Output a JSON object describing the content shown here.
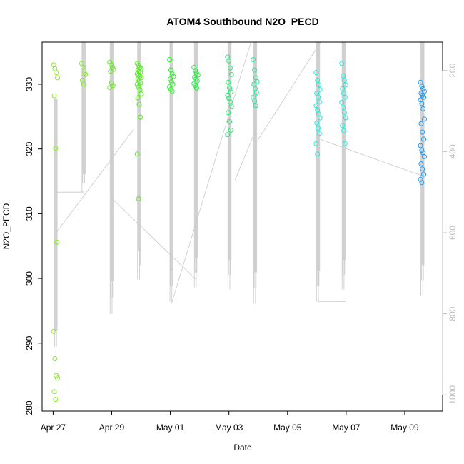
{
  "chart_data": {
    "type": "scatter",
    "title": "ATOM4 Southbound N2O_PECD",
    "xlabel": "Date",
    "ylabel": "N2O_PECD",
    "xlim": [
      "2018-04-26T15:00",
      "2018-05-10T07:00"
    ],
    "ylim": [
      279.5,
      336.5
    ],
    "xticks": [
      {
        "date": "2018-04-27",
        "label": "Apr 27"
      },
      {
        "date": "2018-04-29",
        "label": "Apr 29"
      },
      {
        "date": "2018-05-01",
        "label": "May 01"
      },
      {
        "date": "2018-05-03",
        "label": "May 03"
      },
      {
        "date": "2018-05-05",
        "label": "May 05"
      },
      {
        "date": "2018-05-07",
        "label": "May 07"
      },
      {
        "date": "2018-05-09",
        "label": "May 09"
      }
    ],
    "yticks": [
      280,
      290,
      300,
      310,
      320,
      330
    ],
    "right_axis": {
      "range": [
        1040,
        130
      ],
      "ticks": [
        200,
        400,
        600,
        800,
        1000
      ],
      "color": "#bdbdbd"
    },
    "grid": false,
    "legend": "none",
    "marker": "open-circle",
    "line_color": "#c8c8c8",
    "point_groups": [
      {
        "time": "2018-04-27T02:00",
        "color": "#88ee22",
        "values": [
          333,
          332.4,
          331.8,
          331,
          328.2,
          320.1,
          305.6,
          291.8,
          287.6,
          285,
          284.6,
          282.5,
          281.3
        ]
      },
      {
        "time": "2018-04-28T01:00",
        "color": "#80ee22",
        "values": [
          333.2,
          332.6,
          331.7,
          331.5,
          330.6,
          330
        ]
      },
      {
        "time": "2018-04-29T00:00",
        "color": "#66ee22",
        "values": [
          333.4,
          333,
          332.6,
          332.3,
          332,
          330.2,
          329.8,
          329.5
        ]
      },
      {
        "time": "2018-04-29T22:30",
        "color": "#55ee22",
        "values": [
          333.2,
          332.9,
          332.6,
          332.4,
          332.2,
          332,
          331.8,
          331.6,
          331.4,
          331.2,
          331,
          330.8,
          330.5,
          330.2,
          330,
          329.6,
          329.2,
          328.5,
          327.9,
          326.9,
          324.9,
          319.2,
          312.3
        ]
      },
      {
        "time": "2018-05-01T01:00",
        "color": "#33ee33",
        "values": [
          333.8,
          332.2,
          331.6,
          331.2,
          330.8,
          330.4,
          330,
          329.6,
          329.2,
          328.9
        ]
      },
      {
        "time": "2018-05-01T21:00",
        "color": "#22ee44",
        "values": [
          332.6,
          332.1,
          331.7,
          331.4,
          331.1,
          330.8,
          330.5,
          330.1,
          329.8,
          329.4
        ]
      },
      {
        "time": "2018-05-03T00:30",
        "color": "#22ee77",
        "values": [
          334.2,
          333.6,
          332.5,
          331.5,
          330.3,
          329.4,
          328.8,
          328.3,
          327.8,
          327.3,
          326.6,
          325.6,
          324.2,
          322.9,
          322.2
        ]
      },
      {
        "time": "2018-05-03T21:30",
        "color": "#22ee99",
        "values": [
          333.8,
          332.2,
          331,
          330.4,
          330,
          329.3,
          328.7,
          328,
          327.4,
          326.7
        ]
      },
      {
        "time": "2018-05-06T01:00",
        "color": "#22eedd",
        "values": [
          331.8,
          330.6,
          329.9,
          329.2,
          328.6,
          328,
          327.3,
          326.7,
          326,
          325.4,
          324.8,
          324,
          323.2,
          322.4,
          320.8,
          319.2
        ]
      },
      {
        "time": "2018-05-06T22:00",
        "color": "#22eedd",
        "values": [
          333.2,
          331.3,
          330.6,
          329.9,
          329.3,
          328.6,
          328,
          327.2,
          326.4,
          325.6,
          324.8,
          323.6,
          322.8,
          320.8
        ]
      },
      {
        "time": "2018-05-09T14:30",
        "color": "#2299ee",
        "values": [
          330.3,
          329.7,
          329.3,
          328.9,
          328.6,
          328.3,
          328,
          327.6,
          327,
          326.2,
          324.6,
          323.9,
          322.6,
          321.5,
          320.5,
          319.8,
          319.4,
          318.8,
          317.7,
          316.9,
          316.1,
          315.3,
          314.8
        ]
      }
    ],
    "altitude_profiles": [
      {
        "time": "2018-04-27T02:00",
        "min_ft": 270,
        "max_ft": 920
      },
      {
        "time": "2018-04-28T01:00",
        "min_ft": 130,
        "max_ft": 500
      },
      {
        "time": "2018-04-29T00:00",
        "min_ft": 130,
        "max_ft": 800
      },
      {
        "time": "2018-04-29T22:30",
        "min_ft": 130,
        "max_ft": 715
      },
      {
        "time": "2018-05-01T01:00",
        "min_ft": 130,
        "max_ft": 770
      },
      {
        "time": "2018-05-01T21:00",
        "min_ft": 130,
        "max_ft": 735
      },
      {
        "time": "2018-05-03T00:30",
        "min_ft": 130,
        "max_ft": 740
      },
      {
        "time": "2018-05-03T21:30",
        "min_ft": 130,
        "max_ft": 775
      },
      {
        "time": "2018-05-06T01:00",
        "min_ft": 130,
        "max_ft": 770
      },
      {
        "time": "2018-05-06T22:00",
        "min_ft": 130,
        "max_ft": 740
      },
      {
        "time": "2018-05-09T14:30",
        "min_ft": 130,
        "max_ft": 755
      }
    ],
    "transit_lines": [
      [
        {
          "time": "2018-04-27T00:30",
          "ft": 500
        },
        {
          "time": "2018-04-28T01:00",
          "ft": 500
        }
      ],
      [
        {
          "time": "2018-04-27T02:30",
          "ft": 600
        },
        {
          "time": "2018-04-29T18:00",
          "ft": 345
        }
      ],
      [
        {
          "time": "2018-04-29T00:00",
          "ft": 515
        },
        {
          "time": "2018-05-01T21:00",
          "ft": 715
        }
      ],
      [
        {
          "time": "2018-05-01T01:00",
          "ft": 775
        },
        {
          "time": "2018-05-03T18:00",
          "ft": 130
        }
      ],
      [
        {
          "time": "2018-05-03T05:00",
          "ft": 470
        },
        {
          "time": "2018-05-03T21:30",
          "ft": 350
        }
      ],
      [
        {
          "time": "2018-05-04T00:00",
          "ft": 370
        },
        {
          "time": "2018-05-06T03:00",
          "ft": 130
        }
      ],
      [
        {
          "time": "2018-05-06T01:00",
          "ft": 770
        },
        {
          "time": "2018-05-06T23:30",
          "ft": 770
        }
      ],
      [
        {
          "time": "2018-05-06T03:00",
          "ft": 370
        },
        {
          "time": "2018-05-09T14:30",
          "ft": 460
        }
      ]
    ]
  }
}
